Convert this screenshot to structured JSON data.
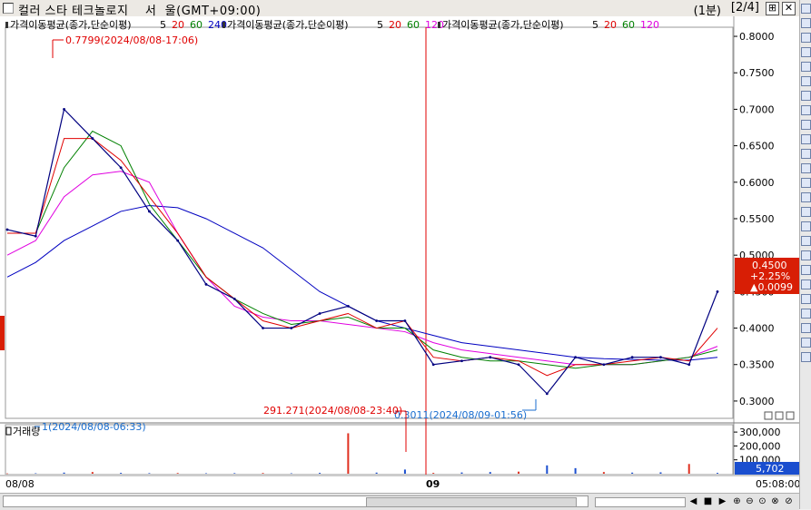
{
  "window": {
    "title": "컬러 스타 테크놀로지    서  울(GMT+09:00)",
    "period": "(1분)",
    "page": "[2/4]",
    "buttons": [
      "⊞",
      "✕"
    ]
  },
  "price_panel": {
    "legends": [
      {
        "label": "가격이동평균(종가,단순이평)",
        "periods": [
          {
            "text": "5",
            "color": "#000000"
          },
          {
            "text": "20",
            "color": "#e00000"
          },
          {
            "text": "60",
            "color": "#008000"
          },
          {
            "text": "240",
            "color": "#0000c0"
          }
        ]
      },
      {
        "label": "가격이동평균(종가,단순이평)",
        "periods": [
          {
            "text": "5",
            "color": "#000000"
          },
          {
            "text": "20",
            "color": "#e00000"
          },
          {
            "text": "60",
            "color": "#008000"
          },
          {
            "text": "120",
            "color": "#e000e0"
          }
        ]
      },
      {
        "label": "가격이동평균(종가,단순이평)",
        "periods": [
          {
            "text": "5",
            "color": "#000000"
          },
          {
            "text": "20",
            "color": "#e00000"
          },
          {
            "text": "60",
            "color": "#008000"
          },
          {
            "text": "120",
            "color": "#e000e0"
          }
        ]
      }
    ],
    "high_annotation": "0.7799(2024/08/08-17:06)",
    "low_annotation": "0.3011(2024/08/09-01:56)",
    "y_ticks": [
      "0.8000",
      "0.7500",
      "0.7000",
      "0.6500",
      "0.6000",
      "0.5500",
      "0.5000",
      "0.4500",
      "0.4000",
      "0.3500",
      "0.3000"
    ],
    "current_price": {
      "price": "0.4500",
      "change_pct": "+2.25%",
      "change": "▲0.0099",
      "color": "#d81e05"
    }
  },
  "volume_panel": {
    "title": "거래량",
    "max_annotation": "291.271(2024/08/08-23:40)",
    "min_annotation": "1(2024/08/08-06:33)",
    "y_ticks": [
      "300,000",
      "200,000",
      "100,000"
    ],
    "current_volume": "5,702",
    "volume_color": "#1a4ecf"
  },
  "x_axis": {
    "labels": [
      "08/08",
      "09"
    ],
    "time": "05:08:00"
  },
  "chart_data": {
    "type": "line",
    "title": "",
    "ylabel": "",
    "ylim": [
      0.28,
      0.81
    ],
    "x": [
      0,
      4,
      8,
      12,
      16,
      20,
      24,
      28,
      32,
      36,
      40,
      44,
      48,
      52,
      56,
      60,
      64,
      68,
      72,
      76,
      80,
      84,
      88,
      92,
      96,
      100
    ],
    "series": [
      {
        "name": "price",
        "color": "#000080",
        "values": [
          0.535,
          0.526,
          0.7,
          0.66,
          0.62,
          0.56,
          0.52,
          0.46,
          0.44,
          0.4,
          0.4,
          0.42,
          0.43,
          0.41,
          0.41,
          0.35,
          0.355,
          0.36,
          0.35,
          0.31,
          0.36,
          0.35,
          0.36,
          0.36,
          0.35,
          0.45
        ]
      },
      {
        "name": "MA20",
        "color": "#e00000",
        "values": [
          0.53,
          0.53,
          0.66,
          0.66,
          0.63,
          0.58,
          0.53,
          0.47,
          0.44,
          0.41,
          0.4,
          0.41,
          0.42,
          0.4,
          0.41,
          0.36,
          0.355,
          0.36,
          0.355,
          0.335,
          0.35,
          0.35,
          0.355,
          0.36,
          0.355,
          0.4
        ]
      },
      {
        "name": "MA60",
        "color": "#008000",
        "values": [
          0.53,
          0.53,
          0.62,
          0.67,
          0.65,
          0.57,
          0.52,
          0.47,
          0.44,
          0.42,
          0.405,
          0.41,
          0.415,
          0.4,
          0.4,
          0.37,
          0.36,
          0.355,
          0.355,
          0.35,
          0.345,
          0.35,
          0.35,
          0.355,
          0.36,
          0.37
        ]
      },
      {
        "name": "MA120",
        "color": "#e000e0",
        "values": [
          0.5,
          0.52,
          0.58,
          0.61,
          0.615,
          0.6,
          0.53,
          0.47,
          0.43,
          0.415,
          0.41,
          0.41,
          0.405,
          0.4,
          0.395,
          0.38,
          0.37,
          0.365,
          0.36,
          0.355,
          0.35,
          0.35,
          0.35,
          0.355,
          0.36,
          0.375
        ]
      },
      {
        "name": "MA240",
        "color": "#0000c0",
        "values": [
          0.47,
          0.49,
          0.52,
          0.54,
          0.56,
          0.568,
          0.565,
          0.55,
          0.53,
          0.51,
          0.48,
          0.45,
          0.43,
          0.41,
          0.4,
          0.39,
          0.38,
          0.375,
          0.37,
          0.365,
          0.36,
          0.358,
          0.357,
          0.356,
          0.356,
          0.36
        ]
      }
    ],
    "volume": {
      "ylim": [
        0,
        340000
      ],
      "values": [
        2000,
        3000,
        8000,
        12000,
        6000,
        4000,
        5000,
        3000,
        4000,
        5000,
        3000,
        6000,
        291271,
        8000,
        30000,
        6000,
        9000,
        12000,
        15000,
        60000,
        40000,
        12000,
        8000,
        10000,
        70000,
        5702
      ]
    }
  }
}
